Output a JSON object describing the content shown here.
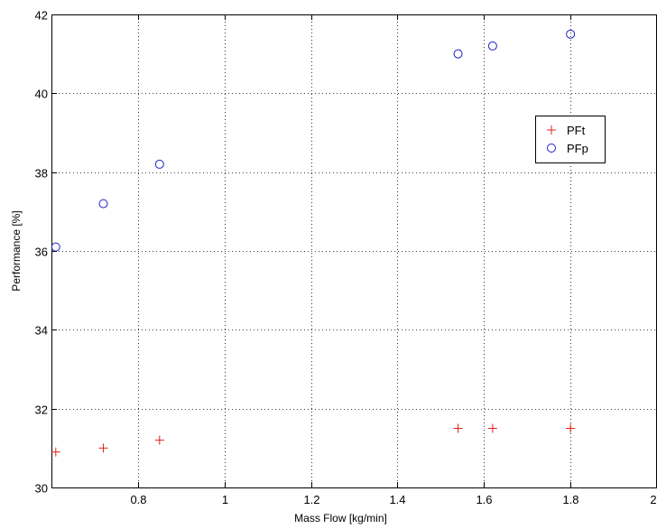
{
  "chart_data": {
    "type": "scatter",
    "title": "",
    "xlabel": "Mass Flow [kg/min]",
    "ylabel": "Performance [%]",
    "xlim": [
      0.6,
      2.0
    ],
    "ylim": [
      30,
      42
    ],
    "x_ticks": [
      0.8,
      1,
      1.2,
      1.4,
      1.6,
      1.8,
      2
    ],
    "x_tick_labels": [
      "0.8",
      "1",
      "1.2",
      "1.4",
      "1.6",
      "1.8",
      "2"
    ],
    "y_ticks": [
      30,
      32,
      34,
      36,
      38,
      40,
      42
    ],
    "y_tick_labels": [
      "30",
      "32",
      "34",
      "36",
      "38",
      "40",
      "42"
    ],
    "grid": true,
    "grid_style": "dotted",
    "legend_position": "upper-right",
    "series": [
      {
        "name": "PFt",
        "marker": "plus",
        "color": "#e0201b",
        "x": [
          0.61,
          0.72,
          0.85,
          1.54,
          1.62,
          1.8
        ],
        "y": [
          30.9,
          31.0,
          31.2,
          31.5,
          31.5,
          31.5
        ]
      },
      {
        "name": "PFp",
        "marker": "circle",
        "color": "#2020c8",
        "x": [
          0.61,
          0.72,
          0.85,
          1.54,
          1.62,
          1.8
        ],
        "y": [
          36.1,
          37.2,
          38.2,
          41.0,
          41.2,
          41.5
        ]
      }
    ]
  }
}
